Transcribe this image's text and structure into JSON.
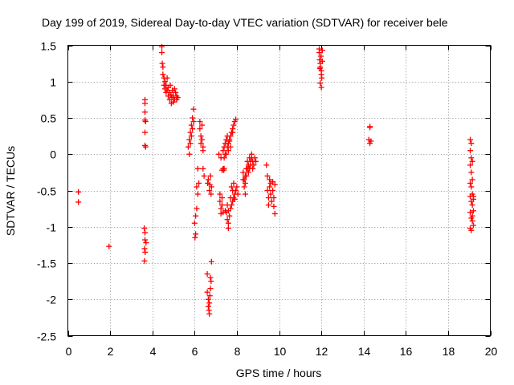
{
  "chart_data": {
    "type": "scatter",
    "title": "Day 199 of 2019, Sidereal Day-to-day VTEC variation (SDTVAR) for receiver bele",
    "xlabel": "GPS time / hours",
    "ylabel": "SDTVAR / TECUs",
    "xlim": [
      0,
      20
    ],
    "ylim": [
      -2.5,
      1.5
    ],
    "xticks": [
      0,
      2,
      4,
      6,
      8,
      10,
      12,
      14,
      16,
      18,
      20
    ],
    "yticks": [
      -2.5,
      -2,
      -1.5,
      -1,
      -0.5,
      0,
      0.5,
      1,
      1.5
    ],
    "xtick_labels": [
      "0",
      "2",
      "4",
      "6",
      "8",
      "10",
      "12",
      "14",
      "16",
      "18",
      "20"
    ],
    "ytick_labels": [
      "-2.5",
      "-2",
      "-1.5",
      "-1",
      "-0.5",
      "0",
      "0.5",
      "1",
      "1.5"
    ],
    "grid": true,
    "marker": "+",
    "series": [
      {
        "name": "SDTVAR",
        "color": "#ff0000",
        "points": [
          [
            0.5,
            -0.52
          ],
          [
            0.5,
            -0.66
          ],
          [
            1.95,
            -1.27
          ],
          [
            3.65,
            0.75
          ],
          [
            3.65,
            0.7
          ],
          [
            3.65,
            0.58
          ],
          [
            3.65,
            0.47
          ],
          [
            3.68,
            0.45
          ],
          [
            3.65,
            0.3
          ],
          [
            3.65,
            0.12
          ],
          [
            3.68,
            0.1
          ],
          [
            3.62,
            -1.02
          ],
          [
            3.65,
            -1.08
          ],
          [
            3.65,
            -1.18
          ],
          [
            3.7,
            -1.22
          ],
          [
            3.63,
            -1.3
          ],
          [
            3.66,
            -1.35
          ],
          [
            3.63,
            -1.47
          ],
          [
            4.45,
            1.48
          ],
          [
            4.45,
            1.4
          ],
          [
            4.47,
            1.25
          ],
          [
            4.5,
            1.2
          ],
          [
            4.5,
            1.1
          ],
          [
            4.55,
            1.05
          ],
          [
            4.55,
            0.95
          ],
          [
            4.6,
            1.0
          ],
          [
            4.6,
            0.9
          ],
          [
            4.65,
            0.85
          ],
          [
            4.65,
            0.95
          ],
          [
            4.7,
            1.05
          ],
          [
            4.7,
            0.88
          ],
          [
            4.75,
            0.8
          ],
          [
            4.75,
            0.92
          ],
          [
            4.8,
            0.85
          ],
          [
            4.82,
            0.75
          ],
          [
            4.85,
            0.95
          ],
          [
            4.88,
            0.82
          ],
          [
            4.9,
            0.7
          ],
          [
            4.92,
            0.78
          ],
          [
            4.95,
            0.88
          ],
          [
            5.0,
            0.8
          ],
          [
            5.0,
            0.72
          ],
          [
            5.05,
            0.9
          ],
          [
            5.05,
            0.75
          ],
          [
            5.1,
            0.85
          ],
          [
            5.15,
            0.8
          ],
          [
            5.15,
            0.75
          ],
          [
            5.2,
            0.78
          ],
          [
            5.7,
            0.1
          ],
          [
            5.75,
            0.2
          ],
          [
            5.75,
            0.0
          ],
          [
            5.8,
            0.3
          ],
          [
            5.8,
            0.15
          ],
          [
            5.85,
            0.4
          ],
          [
            5.85,
            0.25
          ],
          [
            5.9,
            0.5
          ],
          [
            5.9,
            0.35
          ],
          [
            5.95,
            0.62
          ],
          [
            5.95,
            0.45
          ],
          [
            6.0,
            -0.95
          ],
          [
            6.05,
            -1.1
          ],
          [
            6.02,
            -1.15
          ],
          [
            6.05,
            -0.85
          ],
          [
            6.1,
            -0.75
          ],
          [
            6.1,
            -0.45
          ],
          [
            6.15,
            -0.55
          ],
          [
            6.15,
            -0.2
          ],
          [
            6.2,
            -0.4
          ],
          [
            6.25,
            0.45
          ],
          [
            6.25,
            0.35
          ],
          [
            6.3,
            0.25
          ],
          [
            6.3,
            0.15
          ],
          [
            6.35,
            0.2
          ],
          [
            6.35,
            0.4
          ],
          [
            6.4,
            0.1
          ],
          [
            6.4,
            0.05
          ],
          [
            6.4,
            -0.2
          ],
          [
            6.45,
            -0.3
          ],
          [
            6.6,
            -1.65
          ],
          [
            6.6,
            -1.9
          ],
          [
            6.65,
            -2.0
          ],
          [
            6.65,
            -2.1
          ],
          [
            6.7,
            -2.2
          ],
          [
            6.7,
            -2.05
          ],
          [
            6.72,
            -1.95
          ],
          [
            6.75,
            -1.7
          ],
          [
            6.75,
            -1.85
          ],
          [
            6.78,
            -1.75
          ],
          [
            6.8,
            -1.48
          ],
          [
            6.68,
            -2.15
          ],
          [
            6.65,
            -0.35
          ],
          [
            6.7,
            -0.5
          ],
          [
            6.72,
            -0.42
          ],
          [
            6.75,
            -0.3
          ],
          [
            6.78,
            -0.55
          ],
          [
            6.8,
            -0.45
          ],
          [
            6.62,
            -0.4
          ],
          [
            7.2,
            -0.55
          ],
          [
            7.2,
            -0.65
          ],
          [
            7.25,
            -0.75
          ],
          [
            7.25,
            -0.82
          ],
          [
            7.3,
            -0.7
          ],
          [
            7.3,
            -0.6
          ],
          [
            7.35,
            -0.2
          ],
          [
            7.38,
            -0.22
          ],
          [
            7.4,
            -0.2
          ],
          [
            7.3,
            -0.22
          ],
          [
            7.15,
            0.0
          ],
          [
            7.25,
            -0.05
          ],
          [
            7.35,
            0.05
          ],
          [
            7.4,
            0.1
          ],
          [
            7.45,
            0.15
          ],
          [
            7.5,
            0.2
          ],
          [
            7.55,
            0.25
          ],
          [
            7.6,
            0.15
          ],
          [
            7.65,
            0.2
          ],
          [
            7.7,
            0.25
          ],
          [
            7.75,
            0.3
          ],
          [
            7.8,
            0.35
          ],
          [
            7.85,
            0.4
          ],
          [
            7.9,
            0.45
          ],
          [
            7.95,
            0.48
          ],
          [
            7.8,
            0.3
          ],
          [
            7.7,
            0.1
          ],
          [
            7.6,
            0.05
          ],
          [
            7.5,
            0.0
          ],
          [
            7.55,
            0.1
          ],
          [
            7.65,
            0.18
          ],
          [
            7.45,
            0.0
          ],
          [
            7.4,
            -0.05
          ],
          [
            7.5,
            -0.8
          ],
          [
            7.55,
            -0.9
          ],
          [
            7.6,
            -0.95
          ],
          [
            7.6,
            -1.02
          ],
          [
            7.65,
            -0.85
          ],
          [
            7.7,
            -0.75
          ],
          [
            7.75,
            -0.7
          ],
          [
            7.8,
            -0.65
          ],
          [
            7.85,
            -0.6
          ],
          [
            7.9,
            -0.55
          ],
          [
            7.95,
            -0.5
          ],
          [
            8.0,
            -0.45
          ],
          [
            7.7,
            -0.6
          ],
          [
            7.8,
            -0.5
          ],
          [
            7.9,
            -0.62
          ],
          [
            7.6,
            -0.78
          ],
          [
            7.55,
            -0.7
          ],
          [
            7.45,
            -0.78
          ],
          [
            7.35,
            -0.8
          ],
          [
            7.75,
            -0.45
          ],
          [
            7.85,
            -0.4
          ],
          [
            8.05,
            -0.55
          ],
          [
            8.3,
            -0.25
          ],
          [
            8.35,
            -0.35
          ],
          [
            8.4,
            -0.4
          ],
          [
            8.4,
            -0.3
          ],
          [
            8.45,
            -0.2
          ],
          [
            8.5,
            -0.1
          ],
          [
            8.55,
            -0.15
          ],
          [
            8.6,
            -0.05
          ],
          [
            8.65,
            -0.1
          ],
          [
            8.7,
            0.0
          ],
          [
            8.75,
            -0.1
          ],
          [
            8.8,
            -0.15
          ],
          [
            8.85,
            -0.05
          ],
          [
            8.9,
            -0.1
          ],
          [
            8.5,
            -0.2
          ],
          [
            8.55,
            -0.25
          ],
          [
            8.45,
            -0.3
          ],
          [
            8.6,
            -0.2
          ],
          [
            8.65,
            -0.15
          ],
          [
            8.7,
            -0.05
          ],
          [
            8.75,
            -0.2
          ],
          [
            8.35,
            -0.45
          ],
          [
            8.4,
            -0.55
          ],
          [
            8.3,
            -0.35
          ],
          [
            9.4,
            -0.15
          ],
          [
            9.45,
            -0.3
          ],
          [
            9.45,
            -0.5
          ],
          [
            9.5,
            -0.6
          ],
          [
            9.5,
            -0.7
          ],
          [
            9.55,
            -0.45
          ],
          [
            9.55,
            -0.35
          ],
          [
            9.6,
            -0.4
          ],
          [
            9.6,
            -0.55
          ],
          [
            9.65,
            -0.65
          ],
          [
            9.7,
            -0.38
          ],
          [
            9.7,
            -0.5
          ],
          [
            9.75,
            -0.6
          ],
          [
            9.75,
            -0.72
          ],
          [
            9.8,
            -0.82
          ],
          [
            9.8,
            -0.42
          ],
          [
            11.9,
            1.45
          ],
          [
            11.9,
            1.4
          ],
          [
            11.92,
            1.3
          ],
          [
            11.95,
            1.25
          ],
          [
            11.95,
            1.2
          ],
          [
            11.98,
            1.35
          ],
          [
            12.0,
            1.15
          ],
          [
            12.0,
            1.1
          ],
          [
            12.02,
            1.05
          ],
          [
            11.95,
            0.98
          ],
          [
            12.0,
            0.92
          ],
          [
            12.05,
            1.28
          ],
          [
            11.93,
            1.18
          ],
          [
            12.05,
            1.43
          ],
          [
            14.3,
            0.38
          ],
          [
            14.3,
            0.37
          ],
          [
            14.25,
            0.2
          ],
          [
            14.3,
            0.15
          ],
          [
            14.35,
            0.18
          ],
          [
            19.05,
            0.2
          ],
          [
            19.1,
            0.15
          ],
          [
            19.05,
            0.05
          ],
          [
            19.1,
            -0.05
          ],
          [
            19.15,
            -0.1
          ],
          [
            19.05,
            -0.15
          ],
          [
            19.1,
            -0.25
          ],
          [
            19.15,
            -0.35
          ],
          [
            19.05,
            -0.4
          ],
          [
            19.1,
            -0.45
          ],
          [
            19.15,
            -0.55
          ],
          [
            19.2,
            -0.58
          ],
          [
            19.05,
            -0.58
          ],
          [
            19.1,
            -0.65
          ],
          [
            19.15,
            -0.7
          ],
          [
            19.2,
            -0.78
          ],
          [
            19.05,
            -0.8
          ],
          [
            19.1,
            -0.88
          ],
          [
            19.15,
            -0.92
          ],
          [
            19.2,
            -0.98
          ],
          [
            19.05,
            -1.02
          ],
          [
            19.1,
            -1.05
          ],
          [
            19.15,
            -0.85
          ],
          [
            19.2,
            -0.62
          ]
        ]
      }
    ]
  }
}
